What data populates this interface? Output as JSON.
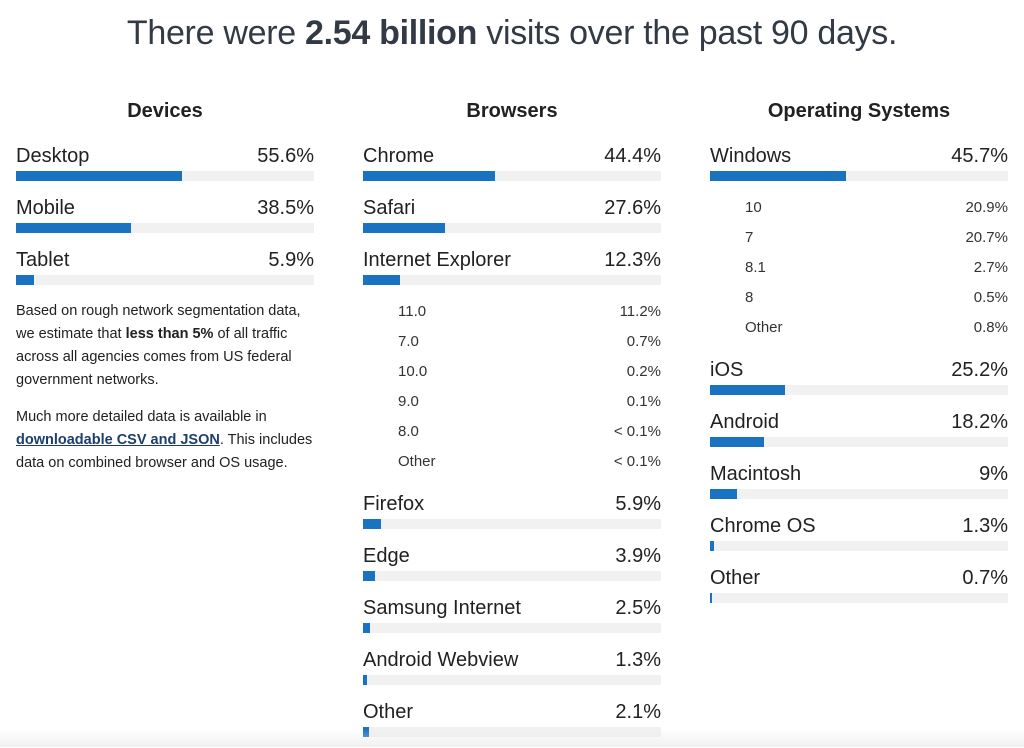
{
  "headline": {
    "prefix": "There were",
    "emphasis": "2.54 billion",
    "suffix": "visits over the past 90 days."
  },
  "devices": {
    "title": "Devices",
    "items": [
      {
        "label": "Desktop",
        "pct": "55.6%",
        "value": 55.6
      },
      {
        "label": "Mobile",
        "pct": "38.5%",
        "value": 38.5
      },
      {
        "label": "Tablet",
        "pct": "5.9%",
        "value": 5.9
      }
    ],
    "note": {
      "p1_before": "Based on rough network segmentation data, we estimate that",
      "p1_bold": "less than 5%",
      "p1_after": "of all traffic across all agencies comes from US federal government networks.",
      "p2_before": "Much more detailed data is available in",
      "p2_link": "downloadable CSV and JSON",
      "p2_after": ". This includes data on combined browser and OS usage."
    }
  },
  "browsers": {
    "title": "Browsers",
    "items": [
      {
        "label": "Chrome",
        "pct": "44.4%",
        "value": 44.4
      },
      {
        "label": "Safari",
        "pct": "27.6%",
        "value": 27.6
      },
      {
        "label": "Internet Explorer",
        "pct": "12.3%",
        "value": 12.3,
        "sub": [
          {
            "label": "11.0",
            "pct": "11.2%"
          },
          {
            "label": "7.0",
            "pct": "0.7%"
          },
          {
            "label": "10.0",
            "pct": "0.2%"
          },
          {
            "label": "9.0",
            "pct": "0.1%"
          },
          {
            "label": "8.0",
            "pct": "< 0.1%"
          },
          {
            "label": "Other",
            "pct": "< 0.1%"
          }
        ]
      },
      {
        "label": "Firefox",
        "pct": "5.9%",
        "value": 5.9
      },
      {
        "label": "Edge",
        "pct": "3.9%",
        "value": 3.9
      },
      {
        "label": "Samsung Internet",
        "pct": "2.5%",
        "value": 2.5
      },
      {
        "label": "Android Webview",
        "pct": "1.3%",
        "value": 1.3
      },
      {
        "label": "Other",
        "pct": "2.1%",
        "value": 2.1
      }
    ]
  },
  "os": {
    "title": "Operating Systems",
    "items": [
      {
        "label": "Windows",
        "pct": "45.7%",
        "value": 45.7,
        "sub": [
          {
            "label": "10",
            "pct": "20.9%"
          },
          {
            "label": "7",
            "pct": "20.7%"
          },
          {
            "label": "8.1",
            "pct": "2.7%"
          },
          {
            "label": "8",
            "pct": "0.5%"
          },
          {
            "label": "Other",
            "pct": "0.8%"
          }
        ]
      },
      {
        "label": "iOS",
        "pct": "25.2%",
        "value": 25.2
      },
      {
        "label": "Android",
        "pct": "18.2%",
        "value": 18.2
      },
      {
        "label": "Macintosh",
        "pct": "9%",
        "value": 9
      },
      {
        "label": "Chrome OS",
        "pct": "1.3%",
        "value": 1.3
      },
      {
        "label": "Other",
        "pct": "0.7%",
        "value": 0.7
      }
    ]
  },
  "colors": {
    "bar": "#1a73c0",
    "track": "#f1f1f1",
    "link": "#1c3e6e"
  }
}
